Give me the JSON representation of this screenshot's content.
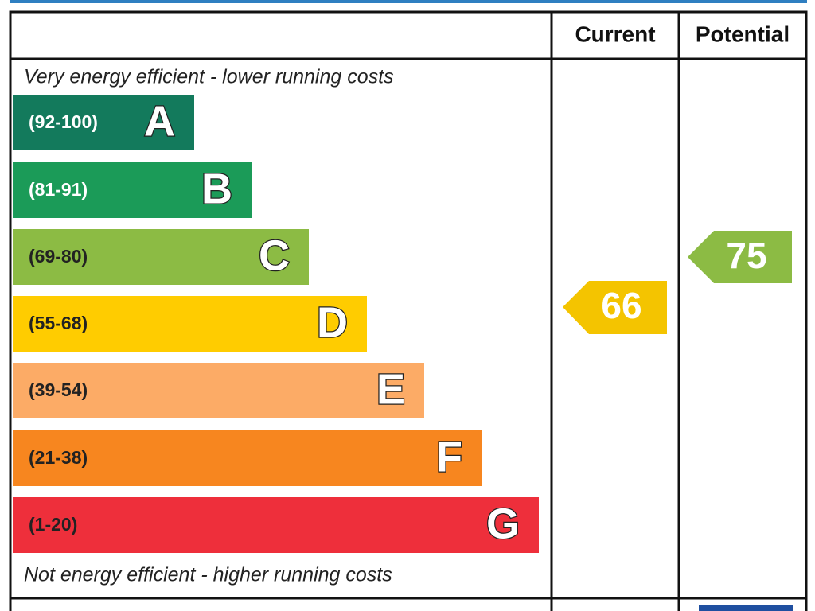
{
  "header": {
    "current": "Current",
    "potential": "Potential"
  },
  "top_note": "Very energy efficient - lower running costs",
  "bottom_note": "Not energy efficient - higher running costs",
  "bands": [
    {
      "range": "(92-100)",
      "letter": "A"
    },
    {
      "range": "(81-91)",
      "letter": "B"
    },
    {
      "range": "(69-80)",
      "letter": "C"
    },
    {
      "range": "(55-68)",
      "letter": "D"
    },
    {
      "range": "(39-54)",
      "letter": "E"
    },
    {
      "range": "(21-38)",
      "letter": "F"
    },
    {
      "range": "(1-20)",
      "letter": "G"
    }
  ],
  "current": "66",
  "potential": "75"
}
